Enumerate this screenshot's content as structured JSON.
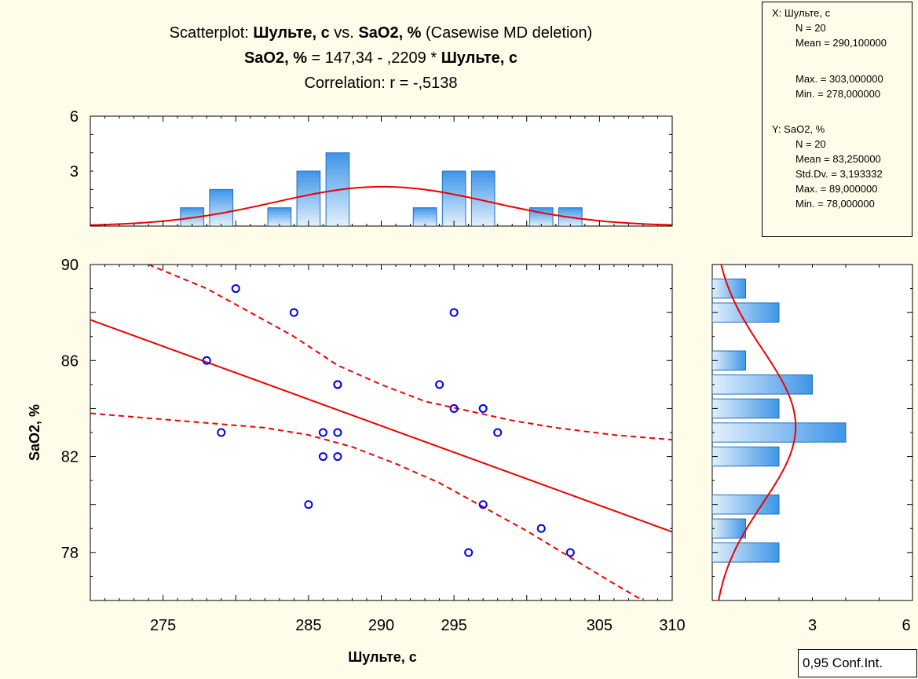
{
  "title": {
    "line1": {
      "pre": "Scatterplot: ",
      "b1": "Шульте, с",
      "mid": " vs. ",
      "b2": "SaO2, %",
      "post": " (Casewise MD deletion)"
    },
    "line2": {
      "b1": "SaO2, %",
      "mid": " = 147,34 - ,2209  * ",
      "b2": "Шульте, с"
    },
    "line3": "Correlation: r = -,5138"
  },
  "stats": {
    "x_header": "X:  Шульте, с",
    "x_n": "N = 20",
    "x_mean": "Mean = 290,100000",
    "x_max": "Max. = 303,000000",
    "x_min": "Min. = 278,000000",
    "y_header": "Y:  SaO2, %",
    "y_n": "N = 20",
    "y_mean": "Mean = 83,250000",
    "y_sd": "Std.Dv. = 3,193332",
    "y_max": "Max. = 89,000000",
    "y_min": "Min. = 78,000000"
  },
  "conf_label": "0,95 Conf.Int.",
  "colors": {
    "background": "#fffde9",
    "points": "#0000ee",
    "fit": "#ee0000",
    "bars": "#3d95e8",
    "bars_light": "#d6eafb"
  },
  "chart_data": [
    {
      "type": "scatter",
      "xlabel": "Шульте, с",
      "ylabel": "SaO2, %",
      "xlim": [
        270,
        310
      ],
      "ylim": [
        76,
        90
      ],
      "x_ticks": [
        "275",
        "285",
        "290",
        "295",
        "305",
        "310"
      ],
      "y_ticks": [
        "78",
        "82",
        "86",
        "90"
      ],
      "points": [
        {
          "x": 278,
          "y": 86
        },
        {
          "x": 279,
          "y": 83
        },
        {
          "x": 280,
          "y": 89
        },
        {
          "x": 284,
          "y": 88
        },
        {
          "x": 285,
          "y": 80
        },
        {
          "x": 286,
          "y": 83
        },
        {
          "x": 286,
          "y": 82
        },
        {
          "x": 287,
          "y": 83
        },
        {
          "x": 287,
          "y": 82
        },
        {
          "x": 287,
          "y": 85
        },
        {
          "x": 294,
          "y": 85
        },
        {
          "x": 295,
          "y": 88
        },
        {
          "x": 295,
          "y": 84
        },
        {
          "x": 296,
          "y": 78
        },
        {
          "x": 297,
          "y": 84
        },
        {
          "x": 297,
          "y": 80
        },
        {
          "x": 298,
          "y": 83
        },
        {
          "x": 301,
          "y": 79
        },
        {
          "x": 303,
          "y": 78
        },
        {
          "x": 287,
          "y": 85
        }
      ],
      "regression": {
        "intercept": 147.34,
        "slope": -0.2209
      },
      "confidence_band": {
        "upper": [
          [
            274,
            90
          ],
          [
            278,
            89
          ],
          [
            281,
            88
          ],
          [
            284,
            87
          ],
          [
            287,
            85.8
          ],
          [
            290,
            85
          ],
          [
            293,
            84.3
          ],
          [
            296,
            83.9
          ],
          [
            299,
            83.5
          ],
          [
            302,
            83.2
          ],
          [
            306,
            82.9
          ],
          [
            310,
            82.7
          ]
        ],
        "lower": [
          [
            270,
            83.8
          ],
          [
            274,
            83.6
          ],
          [
            278,
            83.4
          ],
          [
            282,
            83.2
          ],
          [
            285,
            82.9
          ],
          [
            288,
            82.4
          ],
          [
            291,
            81.7
          ],
          [
            294,
            80.9
          ],
          [
            297,
            79.9
          ],
          [
            300,
            78.9
          ],
          [
            303,
            77.8
          ],
          [
            306,
            76.7
          ],
          [
            308,
            76
          ]
        ]
      }
    },
    {
      "type": "bar",
      "orientation": "vertical",
      "x": [
        277,
        279,
        283,
        285,
        287,
        293,
        295,
        297,
        301,
        303
      ],
      "values": [
        1,
        2,
        1,
        3,
        4,
        1,
        3,
        3,
        1,
        1
      ],
      "y_ticks": [
        "3",
        "6"
      ],
      "ylim": [
        0,
        6
      ]
    },
    {
      "type": "bar",
      "orientation": "horizontal",
      "y": [
        89,
        88,
        86,
        85,
        84,
        83,
        82,
        80,
        79,
        78
      ],
      "values": [
        1,
        2,
        1,
        3,
        2,
        4,
        2,
        2,
        1,
        2
      ],
      "x_ticks": [
        "3",
        "6"
      ],
      "xlim": [
        0,
        6
      ]
    }
  ]
}
